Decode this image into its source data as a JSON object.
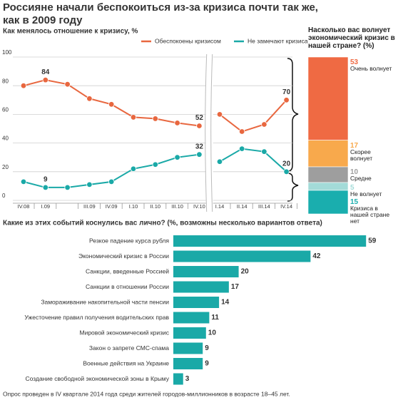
{
  "title": [
    "Россияне начали беспокоиться из-за кризиса почти так же,",
    "как в 2009 году"
  ],
  "chart_data": [
    {
      "type": "line",
      "title": "Как менялось отношение к кризису, %",
      "categories": [
        "IV.08",
        "I.09",
        null,
        "III.09",
        "IV.09",
        "I.10",
        "II.10",
        "III.10",
        "IV.10",
        null,
        "I.14",
        "II.14",
        "III.14",
        "IV.14"
      ],
      "series": [
        {
          "name": "Обеспокоены кризисом",
          "color": "#e8673f",
          "values": [
            80,
            84,
            81,
            71,
            67,
            58,
            57,
            54,
            52,
            null,
            60,
            48,
            53,
            70
          ]
        },
        {
          "name": "Не замечают кризиса",
          "color": "#1aa9a7",
          "values": [
            13,
            9,
            9,
            11,
            13,
            22,
            25,
            30,
            32,
            null,
            27,
            36,
            34,
            20
          ]
        }
      ],
      "ylim": [
        0,
        100
      ],
      "yticks": [
        0,
        20,
        40,
        60,
        80,
        100
      ],
      "grid": true
    },
    {
      "type": "stacked-bar",
      "title": "Насколько вас волнует экономический кризис в нашей стране? (%)",
      "categories": [
        "Очень волнует",
        "Скорее волнует",
        "Средне",
        "Не волнует",
        "Кризиса в нашей стране нет"
      ],
      "values": [
        53,
        17,
        10,
        5,
        15
      ],
      "colors": [
        "#ef6a43",
        "#f8a94c",
        "#9e9e9e",
        "#a3dbd8",
        "#1aaeae"
      ]
    },
    {
      "type": "hbar",
      "title": "Какие из этих событий коснулись вас лично? (%, возможны несколько вариантов ответа)",
      "categories": [
        "Резкое падение курса рубля",
        "Экономический кризис в России",
        "Санкции, введенные Россией",
        "Санкции в отношении России",
        "Замораживание накопительной части пенсии",
        "Ужесточение правил получения водительских прав",
        "Мировой экономический кризис",
        "Закон о запрете СМС-спама",
        "Военные действия на Украине",
        "Создание свободной экономической зоны в Крыму"
      ],
      "values": [
        59,
        42,
        20,
        17,
        14,
        11,
        10,
        9,
        9,
        3
      ],
      "color": "#1aa9a7"
    }
  ],
  "footnote": "Опрос проведен в IV квартале 2014 года среди жителей городов-миллионников в возрасте 18–45 лет."
}
